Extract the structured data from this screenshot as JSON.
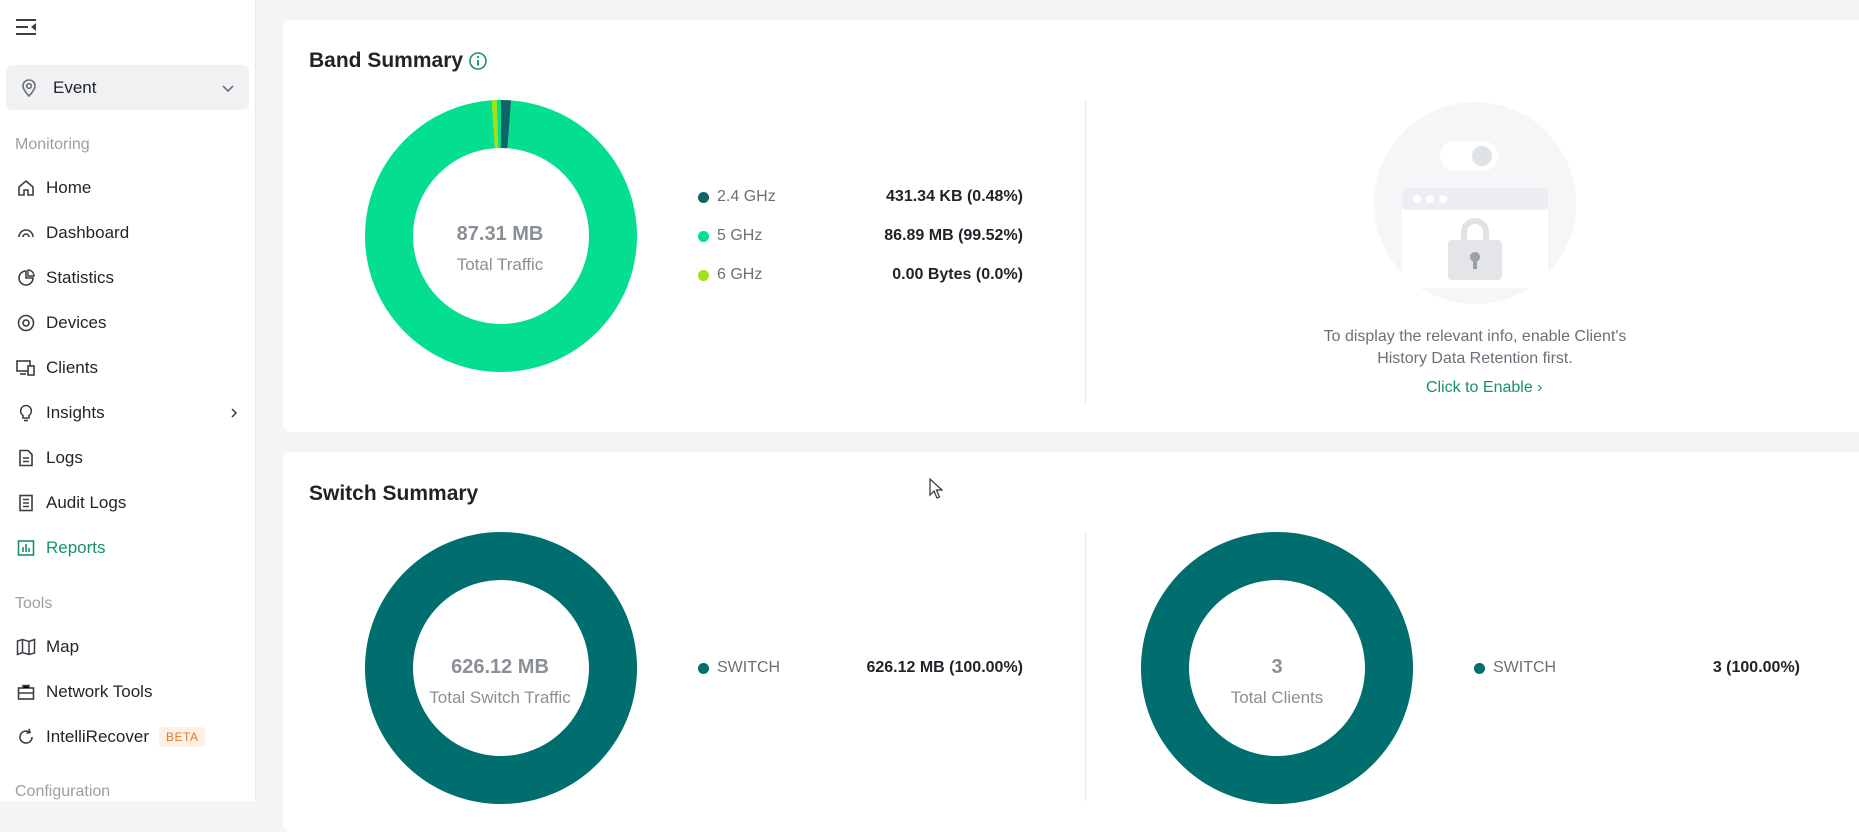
{
  "sidebar": {
    "site_select": "Event",
    "monitoring_label": "Monitoring",
    "tools_label": "Tools",
    "configuration_label": "Configuration",
    "monitoring_items": [
      {
        "label": "Home",
        "icon": "home-icon"
      },
      {
        "label": "Dashboard",
        "icon": "dashboard-icon"
      },
      {
        "label": "Statistics",
        "icon": "statistics-icon"
      },
      {
        "label": "Devices",
        "icon": "devices-icon"
      },
      {
        "label": "Clients",
        "icon": "clients-icon"
      },
      {
        "label": "Insights",
        "icon": "insights-icon"
      },
      {
        "label": "Logs",
        "icon": "logs-icon"
      },
      {
        "label": "Audit Logs",
        "icon": "audit-logs-icon"
      },
      {
        "label": "Reports",
        "icon": "reports-icon",
        "active": true
      }
    ],
    "tools_items": [
      {
        "label": "Map",
        "icon": "map-icon"
      },
      {
        "label": "Network Tools",
        "icon": "network-tools-icon"
      },
      {
        "label": "IntelliRecover",
        "icon": "intellirecover-icon",
        "badge": "BETA"
      }
    ]
  },
  "band_summary": {
    "title": "Band Summary",
    "center_value": "87.31 MB",
    "center_label": "Total Traffic",
    "legend": [
      {
        "name": "2.4 GHz",
        "value": "431.34 KB (0.48%)",
        "color": "#0f6467"
      },
      {
        "name": "5 GHz",
        "value": "86.89 MB (99.52%)",
        "color": "#03de8f"
      },
      {
        "name": "6 GHz",
        "value": "0.00 Bytes (0.0%)",
        "color": "#9ee21a"
      }
    ],
    "empty_message_line1": "To display the relevant info, enable Client's",
    "empty_message_line2": "History Data Retention first.",
    "enable_link": "Click to Enable ›"
  },
  "switch_summary": {
    "title": "Switch Summary",
    "traffic": {
      "center_value": "626.12 MB",
      "center_label": "Total Switch Traffic",
      "legend": [
        {
          "name": "SWITCH",
          "value": "626.12 MB (100.00%)",
          "color": "#006d6e"
        }
      ]
    },
    "clients": {
      "center_value": "3",
      "center_label": "Total Clients",
      "legend": [
        {
          "name": "SWITCH",
          "value": "3 (100.00%)",
          "color": "#006d6e"
        }
      ]
    }
  },
  "chart_data": [
    {
      "type": "pie",
      "title": "Band Summary",
      "categories": [
        "2.4 GHz",
        "5 GHz",
        "6 GHz"
      ],
      "values": [
        0.48,
        99.52,
        0.0
      ],
      "unit": "%"
    },
    {
      "type": "pie",
      "title": "Switch Summary - Traffic",
      "categories": [
        "SWITCH"
      ],
      "values": [
        100.0
      ],
      "unit": "%"
    },
    {
      "type": "pie",
      "title": "Switch Summary - Clients",
      "categories": [
        "SWITCH"
      ],
      "values": [
        100.0
      ],
      "unit": "%"
    }
  ]
}
